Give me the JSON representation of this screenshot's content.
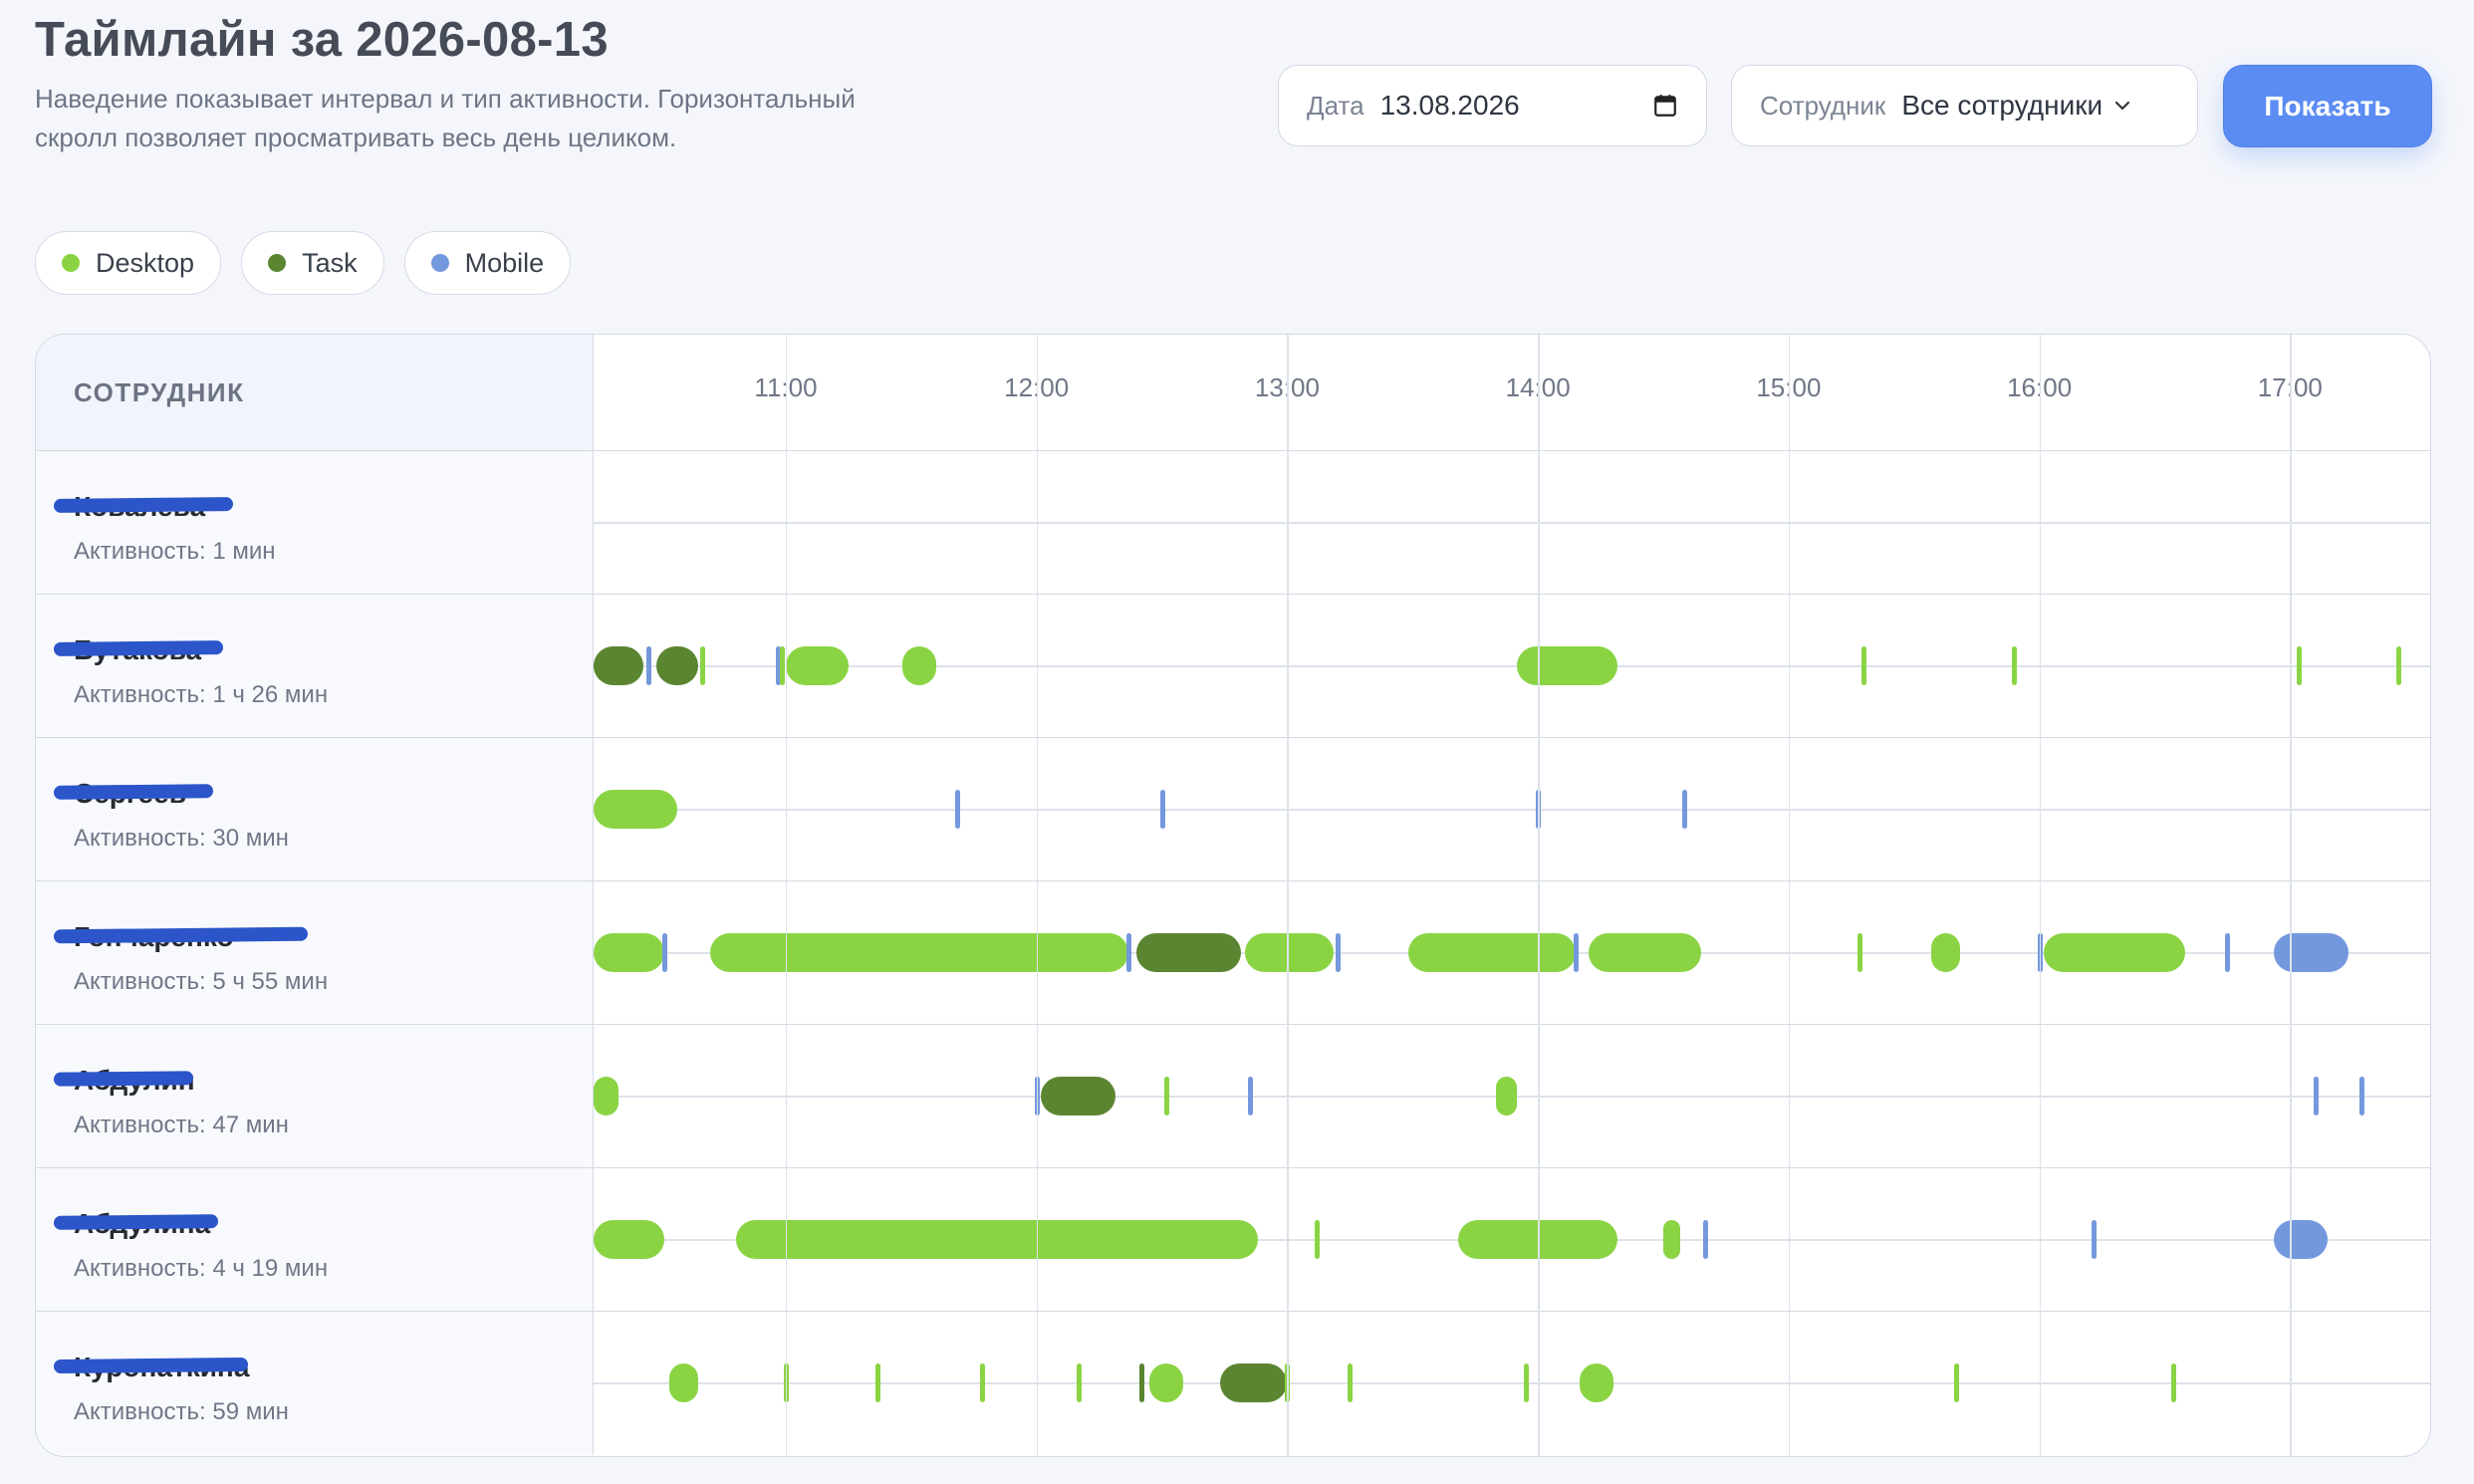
{
  "header": {
    "title": "Таймлайн за 2026-08-13",
    "subtitle": "Наведение показывает интервал и тип активности. Горизонтальный скролл позволяет просматривать весь день целиком."
  },
  "filters": {
    "date_label": "Дата",
    "date_value": "13.08.2026",
    "employee_label": "Сотрудник",
    "employee_value": "Все сотрудники",
    "show_button": "Показать"
  },
  "legend": [
    {
      "label": "Desktop",
      "color": "#8ad444"
    },
    {
      "label": "Task",
      "color": "#5b8531"
    },
    {
      "label": "Mobile",
      "color": "#7498dd"
    }
  ],
  "colors": {
    "desktop": "#8ad444",
    "task": "#5b8531",
    "mobile": "#7498dd",
    "accent": "#5b8cf4"
  },
  "timeline": {
    "column_header": "СОТРУДНИК",
    "start_time": "10:14",
    "end_time": "17:34",
    "ticks": [
      "11:00",
      "12:00",
      "13:00",
      "14:00",
      "15:00",
      "16:00",
      "17:00"
    ],
    "rows": [
      {
        "name": "Ковалева",
        "activity": "Активность: 1 мин",
        "segments": []
      },
      {
        "name": "Бутакова",
        "activity": "Активность: 1 ч 26 мин",
        "segments": [
          {
            "type": "task",
            "start": "10:14",
            "end": "10:26"
          },
          {
            "type": "mobile",
            "start": "10:27",
            "end": "10:28"
          },
          {
            "type": "task",
            "start": "10:29",
            "end": "10:39"
          },
          {
            "type": "desktop",
            "start": "10:40",
            "end": "10:41"
          },
          {
            "type": "mobile",
            "start": "10:58",
            "end": "10:59"
          },
          {
            "type": "desktop",
            "start": "10:59",
            "end": "11:00"
          },
          {
            "type": "desktop",
            "start": "11:00",
            "end": "11:15"
          },
          {
            "type": "desktop",
            "start": "11:28",
            "end": "11:36"
          },
          {
            "type": "desktop",
            "start": "13:55",
            "end": "14:19"
          },
          {
            "type": "desktop",
            "start": "15:18",
            "end": "15:19"
          },
          {
            "type": "desktop",
            "start": "15:54",
            "end": "15:55"
          },
          {
            "type": "desktop",
            "start": "17:02",
            "end": "17:03"
          },
          {
            "type": "desktop",
            "start": "17:26",
            "end": "17:27"
          }
        ]
      },
      {
        "name": "Сергеев",
        "activity": "Активность: 30 мин",
        "segments": [
          {
            "type": "desktop",
            "start": "10:14",
            "end": "10:34"
          },
          {
            "type": "mobile",
            "start": "11:41",
            "end": "11:42"
          },
          {
            "type": "mobile",
            "start": "12:30",
            "end": "12:32"
          },
          {
            "type": "mobile",
            "start": "14:00",
            "end": "14:01"
          },
          {
            "type": "mobile",
            "start": "14:35",
            "end": "14:36"
          }
        ]
      },
      {
        "name": "Гончаренко",
        "activity": "Активность: 5 ч 55 мин",
        "segments": [
          {
            "type": "desktop",
            "start": "10:14",
            "end": "10:31"
          },
          {
            "type": "mobile",
            "start": "10:31",
            "end": "10:32"
          },
          {
            "type": "desktop",
            "start": "10:42",
            "end": "12:22"
          },
          {
            "type": "mobile",
            "start": "12:22",
            "end": "12:23"
          },
          {
            "type": "task",
            "start": "12:24",
            "end": "12:49"
          },
          {
            "type": "desktop",
            "start": "12:50",
            "end": "13:11"
          },
          {
            "type": "mobile",
            "start": "13:12",
            "end": "13:13"
          },
          {
            "type": "desktop",
            "start": "13:29",
            "end": "14:09"
          },
          {
            "type": "mobile",
            "start": "14:09",
            "end": "14:10"
          },
          {
            "type": "desktop",
            "start": "14:12",
            "end": "14:39"
          },
          {
            "type": "desktop",
            "start": "15:17",
            "end": "15:18"
          },
          {
            "type": "desktop",
            "start": "15:34",
            "end": "15:41"
          },
          {
            "type": "mobile",
            "start": "16:00",
            "end": "16:01"
          },
          {
            "type": "desktop",
            "start": "16:01",
            "end": "16:35"
          },
          {
            "type": "mobile",
            "start": "16:45",
            "end": "16:46"
          },
          {
            "type": "mobile",
            "start": "16:56",
            "end": "17:14"
          }
        ]
      },
      {
        "name": "Абдулин",
        "activity": "Активность: 47 мин",
        "segments": [
          {
            "type": "desktop",
            "start": "10:14",
            "end": "10:20"
          },
          {
            "type": "mobile",
            "start": "12:00",
            "end": "12:01"
          },
          {
            "type": "task",
            "start": "12:01",
            "end": "12:19"
          },
          {
            "type": "desktop",
            "start": "12:31",
            "end": "12:32"
          },
          {
            "type": "mobile",
            "start": "12:51",
            "end": "12:52"
          },
          {
            "type": "desktop",
            "start": "13:50",
            "end": "13:55"
          },
          {
            "type": "mobile",
            "start": "17:06",
            "end": "17:07"
          },
          {
            "type": "mobile",
            "start": "17:17",
            "end": "17:18"
          }
        ]
      },
      {
        "name": "Абдулина",
        "activity": "Активность: 4 ч 19 мин",
        "segments": [
          {
            "type": "desktop",
            "start": "10:14",
            "end": "10:31"
          },
          {
            "type": "desktop",
            "start": "10:48",
            "end": "12:53"
          },
          {
            "type": "desktop",
            "start": "13:07",
            "end": "13:08"
          },
          {
            "type": "desktop",
            "start": "13:41",
            "end": "14:19"
          },
          {
            "type": "desktop",
            "start": "14:30",
            "end": "14:34"
          },
          {
            "type": "mobile",
            "start": "14:40",
            "end": "14:41"
          },
          {
            "type": "mobile",
            "start": "16:13",
            "end": "16:14"
          },
          {
            "type": "mobile",
            "start": "16:56",
            "end": "17:09"
          }
        ]
      },
      {
        "name": "Куропаткина",
        "activity": "Активность: 59 мин",
        "segments": [
          {
            "type": "desktop",
            "start": "10:32",
            "end": "10:39"
          },
          {
            "type": "desktop",
            "start": "11:00",
            "end": "11:01"
          },
          {
            "type": "desktop",
            "start": "11:22",
            "end": "11:23"
          },
          {
            "type": "desktop",
            "start": "11:47",
            "end": "11:48"
          },
          {
            "type": "desktop",
            "start": "12:10",
            "end": "12:11"
          },
          {
            "type": "task",
            "start": "12:25",
            "end": "12:27"
          },
          {
            "type": "desktop",
            "start": "12:27",
            "end": "12:35"
          },
          {
            "type": "task",
            "start": "12:44",
            "end": "13:00"
          },
          {
            "type": "desktop",
            "start": "13:00",
            "end": "13:01"
          },
          {
            "type": "desktop",
            "start": "13:15",
            "end": "13:16"
          },
          {
            "type": "desktop",
            "start": "13:57",
            "end": "13:58"
          },
          {
            "type": "desktop",
            "start": "14:10",
            "end": "14:18"
          },
          {
            "type": "desktop",
            "start": "15:40",
            "end": "15:41"
          },
          {
            "type": "desktop",
            "start": "16:32",
            "end": "16:33"
          }
        ]
      }
    ]
  }
}
